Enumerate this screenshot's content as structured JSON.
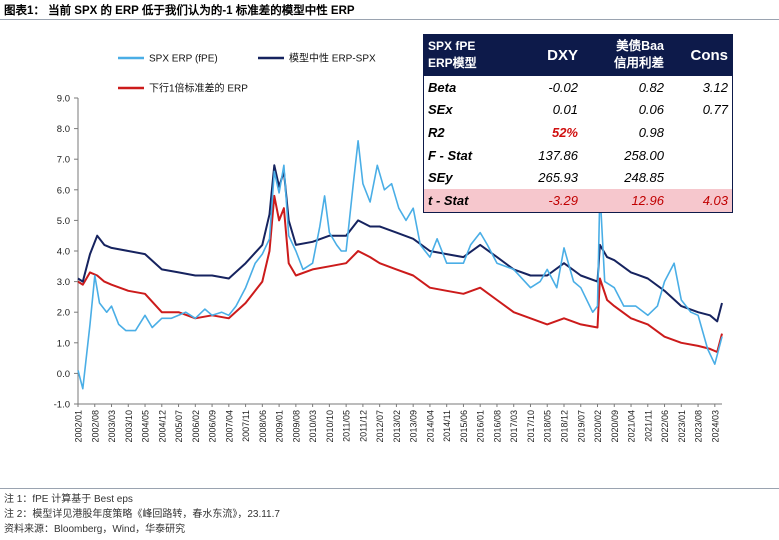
{
  "figure_title": "图表1：  当前 SPX 的 ERP 低于我们认为的-1 标准差的模型中性 ERP",
  "notes": [
    "注 1：fPE 计算基于 Best eps",
    "注 2：模型详见港股年度策略《峰回路转，春水东流》，23.11.7",
    "资料来源：Bloomberg，Wind，华泰研究"
  ],
  "colors": {
    "spx_erp": "#4aaee6",
    "model_neutral": "#16235f",
    "lower_band": "#cc1b1b",
    "table_header_bg": "#0d1a4a",
    "table_highlight_bg": "#f6c7cd"
  },
  "stats_table": {
    "headers": [
      "SPX fPE ERP模型",
      "DXY",
      "美债Baa信用利差",
      "Cons"
    ],
    "header_lines": {
      "c0": [
        "SPX fPE",
        "ERP模型"
      ],
      "c1": [
        "DXY"
      ],
      "c2": [
        "美债Baa",
        "信用利差"
      ],
      "c3": [
        "Cons"
      ]
    },
    "rows": [
      {
        "label": "Beta",
        "values": [
          "-0.02",
          "0.82",
          "3.12"
        ]
      },
      {
        "label": "SEx",
        "values": [
          "0.01",
          "0.06",
          "0.77"
        ]
      },
      {
        "label": "R2",
        "values": [
          "52%",
          "0.98",
          ""
        ]
      },
      {
        "label": "F - Stat",
        "values": [
          "137.86",
          "258.00",
          ""
        ]
      },
      {
        "label": "SEy",
        "values": [
          "265.93",
          "248.85",
          ""
        ]
      },
      {
        "label": "t - Stat",
        "values": [
          "-3.29",
          "12.96",
          "4.03"
        ]
      }
    ]
  },
  "chart_data": {
    "type": "line",
    "title": "",
    "xlabel": "",
    "ylabel": "",
    "ylim": [
      -1.0,
      9.0
    ],
    "yticks": [
      "-1.0",
      "0.0",
      "1.0",
      "2.0",
      "3.0",
      "4.0",
      "5.0",
      "6.0",
      "7.0",
      "8.0",
      "9.0"
    ],
    "x_tick_labels": [
      "2002/01",
      "2002/08",
      "2003/03",
      "2003/10",
      "2004/05",
      "2004/12",
      "2005/07",
      "2006/02",
      "2006/09",
      "2007/04",
      "2007/11",
      "2008/06",
      "2009/01",
      "2009/08",
      "2010/03",
      "2010/10",
      "2011/05",
      "2011/12",
      "2012/07",
      "2013/02",
      "2013/09",
      "2014/04",
      "2014/11",
      "2015/06",
      "2016/01",
      "2016/08",
      "2017/03",
      "2017/10",
      "2018/05",
      "2018/12",
      "2019/07",
      "2020/02",
      "2020/09",
      "2021/04",
      "2021/11",
      "2022/06",
      "2023/01",
      "2023/08",
      "2024/03"
    ],
    "x_range": [
      "2002/01",
      "2024/06"
    ],
    "grid": false,
    "legend": "top-left",
    "series": [
      {
        "name": "SPX ERP (fPE)",
        "key": "spx_erp",
        "points": [
          [
            "2002/01",
            0.1
          ],
          [
            "2002/03",
            -0.5
          ],
          [
            "2002/06",
            1.6
          ],
          [
            "2002/08",
            3.2
          ],
          [
            "2002/10",
            2.3
          ],
          [
            "2003/01",
            2.0
          ],
          [
            "2003/03",
            2.2
          ],
          [
            "2003/06",
            1.6
          ],
          [
            "2003/09",
            1.4
          ],
          [
            "2004/01",
            1.4
          ],
          [
            "2004/05",
            1.9
          ],
          [
            "2004/08",
            1.5
          ],
          [
            "2004/12",
            1.8
          ],
          [
            "2005/04",
            1.8
          ],
          [
            "2005/07",
            1.9
          ],
          [
            "2005/10",
            2.0
          ],
          [
            "2006/02",
            1.8
          ],
          [
            "2006/06",
            2.1
          ],
          [
            "2006/09",
            1.9
          ],
          [
            "2007/01",
            2.0
          ],
          [
            "2007/04",
            1.9
          ],
          [
            "2007/07",
            2.2
          ],
          [
            "2007/11",
            2.8
          ],
          [
            "2008/03",
            3.6
          ],
          [
            "2008/06",
            3.9
          ],
          [
            "2008/09",
            4.4
          ],
          [
            "2008/11",
            6.6
          ],
          [
            "2009/01",
            5.9
          ],
          [
            "2009/03",
            6.8
          ],
          [
            "2009/05",
            4.5
          ],
          [
            "2009/08",
            4.0
          ],
          [
            "2009/11",
            3.4
          ],
          [
            "2010/03",
            3.6
          ],
          [
            "2010/06",
            4.8
          ],
          [
            "2010/08",
            5.8
          ],
          [
            "2010/10",
            4.6
          ],
          [
            "2011/01",
            4.2
          ],
          [
            "2011/03",
            4.0
          ],
          [
            "2011/05",
            4.0
          ],
          [
            "2011/08",
            6.2
          ],
          [
            "2011/10",
            7.6
          ],
          [
            "2011/12",
            6.2
          ],
          [
            "2012/03",
            5.6
          ],
          [
            "2012/06",
            6.8
          ],
          [
            "2012/09",
            6.0
          ],
          [
            "2012/12",
            6.2
          ],
          [
            "2013/03",
            5.4
          ],
          [
            "2013/06",
            5.0
          ],
          [
            "2013/09",
            5.4
          ],
          [
            "2013/12",
            4.2
          ],
          [
            "2014/04",
            3.8
          ],
          [
            "2014/07",
            4.4
          ],
          [
            "2014/11",
            3.6
          ],
          [
            "2015/03",
            3.6
          ],
          [
            "2015/06",
            3.6
          ],
          [
            "2015/09",
            4.2
          ],
          [
            "2016/01",
            4.6
          ],
          [
            "2016/04",
            4.2
          ],
          [
            "2016/08",
            3.6
          ],
          [
            "2017/03",
            3.4
          ],
          [
            "2017/10",
            2.8
          ],
          [
            "2018/02",
            3.0
          ],
          [
            "2018/05",
            3.4
          ],
          [
            "2018/09",
            2.8
          ],
          [
            "2018/12",
            4.1
          ],
          [
            "2019/04",
            3.0
          ],
          [
            "2019/07",
            2.8
          ],
          [
            "2019/12",
            2.0
          ],
          [
            "2020/02",
            2.2
          ],
          [
            "2020/03",
            6.0
          ],
          [
            "2020/05",
            3.0
          ],
          [
            "2020/09",
            2.8
          ],
          [
            "2021/01",
            2.2
          ],
          [
            "2021/06",
            2.2
          ],
          [
            "2021/11",
            1.9
          ],
          [
            "2022/03",
            2.2
          ],
          [
            "2022/06",
            3.0
          ],
          [
            "2022/10",
            3.6
          ],
          [
            "2023/01",
            2.4
          ],
          [
            "2023/05",
            2.0
          ],
          [
            "2023/08",
            1.9
          ],
          [
            "2023/12",
            0.8
          ],
          [
            "2024/03",
            0.3
          ],
          [
            "2024/06",
            1.2
          ]
        ]
      },
      {
        "name": "模型中性 ERP-SPX",
        "key": "model_neutral",
        "points": [
          [
            "2002/01",
            3.1
          ],
          [
            "2002/03",
            3.0
          ],
          [
            "2002/06",
            3.9
          ],
          [
            "2002/09",
            4.5
          ],
          [
            "2002/12",
            4.2
          ],
          [
            "2003/03",
            4.1
          ],
          [
            "2003/10",
            4.0
          ],
          [
            "2004/05",
            3.9
          ],
          [
            "2004/12",
            3.4
          ],
          [
            "2005/07",
            3.3
          ],
          [
            "2006/02",
            3.2
          ],
          [
            "2006/09",
            3.2
          ],
          [
            "2007/04",
            3.1
          ],
          [
            "2007/11",
            3.6
          ],
          [
            "2008/06",
            4.2
          ],
          [
            "2008/09",
            5.2
          ],
          [
            "2008/11",
            6.8
          ],
          [
            "2009/01",
            6.1
          ],
          [
            "2009/03",
            6.6
          ],
          [
            "2009/05",
            5.0
          ],
          [
            "2009/08",
            4.2
          ],
          [
            "2010/03",
            4.3
          ],
          [
            "2010/10",
            4.5
          ],
          [
            "2011/05",
            4.5
          ],
          [
            "2011/10",
            5.0
          ],
          [
            "2012/03",
            4.8
          ],
          [
            "2012/07",
            4.8
          ],
          [
            "2013/02",
            4.6
          ],
          [
            "2013/09",
            4.4
          ],
          [
            "2014/04",
            4.0
          ],
          [
            "2014/11",
            3.9
          ],
          [
            "2015/06",
            3.8
          ],
          [
            "2016/01",
            4.2
          ],
          [
            "2016/08",
            3.8
          ],
          [
            "2017/03",
            3.4
          ],
          [
            "2017/10",
            3.2
          ],
          [
            "2018/05",
            3.2
          ],
          [
            "2018/12",
            3.6
          ],
          [
            "2019/07",
            3.2
          ],
          [
            "2020/02",
            3.0
          ],
          [
            "2020/03",
            4.2
          ],
          [
            "2020/06",
            3.8
          ],
          [
            "2020/09",
            3.7
          ],
          [
            "2021/04",
            3.3
          ],
          [
            "2021/11",
            3.1
          ],
          [
            "2022/06",
            2.7
          ],
          [
            "2023/01",
            2.2
          ],
          [
            "2023/08",
            2.0
          ],
          [
            "2024/01",
            1.9
          ],
          [
            "2024/04",
            1.7
          ],
          [
            "2024/06",
            2.3
          ]
        ]
      },
      {
        "name": "下行1倍标准差的 ERP",
        "key": "lower_band",
        "points": [
          [
            "2002/01",
            3.0
          ],
          [
            "2002/03",
            2.9
          ],
          [
            "2002/06",
            3.3
          ],
          [
            "2002/09",
            3.2
          ],
          [
            "2002/12",
            3.0
          ],
          [
            "2003/03",
            2.9
          ],
          [
            "2003/10",
            2.7
          ],
          [
            "2004/05",
            2.6
          ],
          [
            "2004/12",
            2.0
          ],
          [
            "2005/07",
            2.0
          ],
          [
            "2006/02",
            1.8
          ],
          [
            "2006/09",
            1.9
          ],
          [
            "2007/04",
            1.8
          ],
          [
            "2007/11",
            2.3
          ],
          [
            "2008/06",
            3.0
          ],
          [
            "2008/09",
            4.0
          ],
          [
            "2008/11",
            5.8
          ],
          [
            "2009/01",
            5.0
          ],
          [
            "2009/03",
            5.4
          ],
          [
            "2009/05",
            3.6
          ],
          [
            "2009/08",
            3.2
          ],
          [
            "2010/03",
            3.4
          ],
          [
            "2010/10",
            3.5
          ],
          [
            "2011/05",
            3.6
          ],
          [
            "2011/10",
            4.0
          ],
          [
            "2012/03",
            3.8
          ],
          [
            "2012/07",
            3.6
          ],
          [
            "2013/02",
            3.4
          ],
          [
            "2013/09",
            3.2
          ],
          [
            "2014/04",
            2.8
          ],
          [
            "2014/11",
            2.7
          ],
          [
            "2015/06",
            2.6
          ],
          [
            "2016/01",
            2.8
          ],
          [
            "2016/08",
            2.4
          ],
          [
            "2017/03",
            2.0
          ],
          [
            "2017/10",
            1.8
          ],
          [
            "2018/05",
            1.6
          ],
          [
            "2018/12",
            1.8
          ],
          [
            "2019/07",
            1.6
          ],
          [
            "2020/02",
            1.5
          ],
          [
            "2020/03",
            3.1
          ],
          [
            "2020/06",
            2.4
          ],
          [
            "2020/09",
            2.2
          ],
          [
            "2021/04",
            1.8
          ],
          [
            "2021/11",
            1.6
          ],
          [
            "2022/06",
            1.2
          ],
          [
            "2023/01",
            1.0
          ],
          [
            "2023/08",
            0.9
          ],
          [
            "2024/01",
            0.8
          ],
          [
            "2024/04",
            0.7
          ],
          [
            "2024/06",
            1.3
          ]
        ]
      }
    ]
  }
}
